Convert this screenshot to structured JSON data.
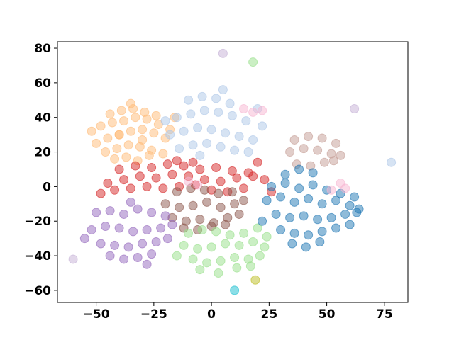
{
  "chart_data": {
    "type": "scatter",
    "xlim": [
      -66.8,
      85.2
    ],
    "ylim": [
      -67,
      83.7
    ],
    "xticks": [
      {
        "value": -50,
        "label": "−50"
      },
      {
        "value": -25,
        "label": "−25"
      },
      0,
      25,
      50,
      75
    ],
    "yticks": [
      {
        "value": -60,
        "label": "−60"
      },
      {
        "value": -40,
        "label": "−40"
      },
      {
        "value": -20,
        "label": "−20"
      },
      0,
      20,
      40,
      60,
      80
    ],
    "series": [
      {
        "color": "#ffbb78",
        "x": [
          -50,
          -45,
          -40,
          -35,
          -30,
          -25,
          -20,
          -48,
          -43,
          -38,
          -33,
          -28,
          -23,
          -18,
          -46,
          -41,
          -36,
          -31,
          -26,
          -21,
          -44,
          -39,
          -34,
          -29,
          -24,
          -42,
          -37,
          -32,
          -27,
          -52,
          -16,
          -35,
          -30,
          -40
        ],
        "y": [
          25,
          28,
          30,
          32,
          33,
          31,
          28,
          35,
          37,
          38,
          40,
          39,
          36,
          33,
          20,
          22,
          24,
          23,
          21,
          19,
          42,
          44,
          45,
          43,
          41,
          16,
          17,
          15,
          18,
          32,
          40,
          48,
          27,
          30
        ]
      },
      {
        "color": "#aec7e8",
        "x": [
          -18,
          -12,
          -6,
          0,
          6,
          12,
          18,
          -15,
          -9,
          -3,
          3,
          9,
          15,
          -14,
          -8,
          -2,
          4,
          10,
          16,
          -10,
          -4,
          2,
          8,
          -20,
          22,
          -5,
          5,
          20
        ],
        "y": [
          30,
          32,
          34,
          33,
          31,
          29,
          27,
          40,
          42,
          44,
          43,
          41,
          38,
          22,
          24,
          25,
          23,
          21,
          20,
          50,
          52,
          51,
          48,
          38,
          35,
          18,
          56,
          45
        ]
      },
      {
        "color": "#c49c94",
        "x": [
          34,
          40,
          46,
          52,
          56,
          36,
          42,
          48,
          54,
          37,
          43,
          49,
          53
        ],
        "y": [
          20,
          22,
          21,
          19,
          18,
          27,
          29,
          28,
          25,
          13,
          12,
          14,
          15
        ]
      },
      {
        "color": "#d62728",
        "x": [
          -45,
          -38,
          -31,
          -24,
          -17,
          -10,
          -3,
          4,
          11,
          18,
          23,
          -40,
          -33,
          -26,
          -19,
          -12,
          -5,
          2,
          9,
          16,
          -42,
          -35,
          -28,
          -21,
          -14,
          -7,
          0,
          7,
          14,
          -48,
          -15,
          -8,
          20,
          26
        ],
        "y": [
          2,
          4,
          6,
          5,
          7,
          6,
          4,
          3,
          5,
          6,
          4,
          10,
          12,
          11,
          13,
          12,
          10,
          11,
          9,
          8,
          -2,
          -1,
          0,
          -1,
          0,
          1,
          -2,
          -3,
          -1,
          -4,
          15,
          14,
          14,
          -3
        ]
      },
      {
        "color": "#8c564b",
        "x": [
          -20,
          -14,
          -8,
          -2,
          4,
          10,
          14,
          -17,
          -11,
          -5,
          1,
          7,
          12,
          -15,
          -9,
          -3,
          3,
          9,
          -12,
          -6,
          0,
          6
        ],
        "y": [
          -10,
          -12,
          -11,
          -9,
          -12,
          -10,
          -8,
          -18,
          -20,
          -19,
          -21,
          -18,
          -16,
          -3,
          -1,
          -2,
          -4,
          -3,
          -24,
          -25,
          -23,
          -22
        ]
      },
      {
        "color": "#9467bd",
        "x": [
          -52,
          -46,
          -40,
          -34,
          -28,
          -22,
          -17,
          -50,
          -44,
          -38,
          -32,
          -26,
          -20,
          -48,
          -42,
          -36,
          -30,
          -24,
          -19,
          -44,
          -38,
          -32,
          -26,
          -55,
          -35,
          -28
        ],
        "y": [
          -25,
          -23,
          -24,
          -26,
          -25,
          -24,
          -22,
          -15,
          -14,
          -16,
          -13,
          -15,
          -17,
          -33,
          -34,
          -35,
          -33,
          -32,
          -30,
          -40,
          -42,
          -41,
          -39,
          -30,
          -9,
          -45
        ]
      },
      {
        "color": "#98df8a",
        "x": [
          -12,
          -6,
          0,
          6,
          12,
          18,
          23,
          -10,
          -4,
          2,
          8,
          14,
          20,
          -8,
          -2,
          4,
          10,
          16,
          21,
          -5,
          3,
          11,
          17,
          -15,
          24
        ],
        "y": [
          -34,
          -36,
          -35,
          -33,
          -34,
          -32,
          -35,
          -27,
          -25,
          -26,
          -28,
          -27,
          -24,
          -42,
          -44,
          -43,
          -41,
          -42,
          -40,
          -48,
          -50,
          -47,
          -46,
          -40,
          -29
        ]
      },
      {
        "color": "#1f77b4",
        "x": [
          24,
          30,
          36,
          42,
          48,
          54,
          60,
          64,
          28,
          34,
          40,
          46,
          52,
          58,
          63,
          26,
          32,
          38,
          44,
          50,
          56,
          62,
          30,
          36,
          42,
          48,
          54,
          32,
          38,
          44,
          35,
          41,
          47,
          22,
          60
        ],
        "y": [
          -8,
          -6,
          -9,
          -7,
          -10,
          -8,
          -11,
          -13,
          -16,
          -18,
          -17,
          -19,
          -18,
          -16,
          -15,
          0,
          2,
          -1,
          1,
          -2,
          -4,
          -6,
          -25,
          -27,
          -28,
          -26,
          -24,
          7,
          10,
          8,
          -33,
          -35,
          -32,
          -20,
          -22
        ]
      },
      {
        "color": "#f7b6d2",
        "x": [
          14,
          18,
          22,
          52,
          56,
          58,
          -10,
          -6
        ],
        "y": [
          45,
          43,
          44,
          -2,
          2,
          -1,
          3,
          1
        ]
      },
      {
        "color": "#c5b0d5",
        "x": [
          5,
          62,
          -60
        ],
        "y": [
          77,
          45,
          -42
        ]
      },
      {
        "color": "#98df8a",
        "x": [
          18
        ],
        "y": [
          72
        ]
      },
      {
        "color": "#aec7e8",
        "x": [
          78
        ],
        "y": [
          14
        ]
      },
      {
        "color": "#bcbd22",
        "x": [
          19
        ],
        "y": [
          -54
        ]
      },
      {
        "color": "#17becf",
        "x": [
          10
        ],
        "y": [
          -60
        ]
      }
    ]
  }
}
